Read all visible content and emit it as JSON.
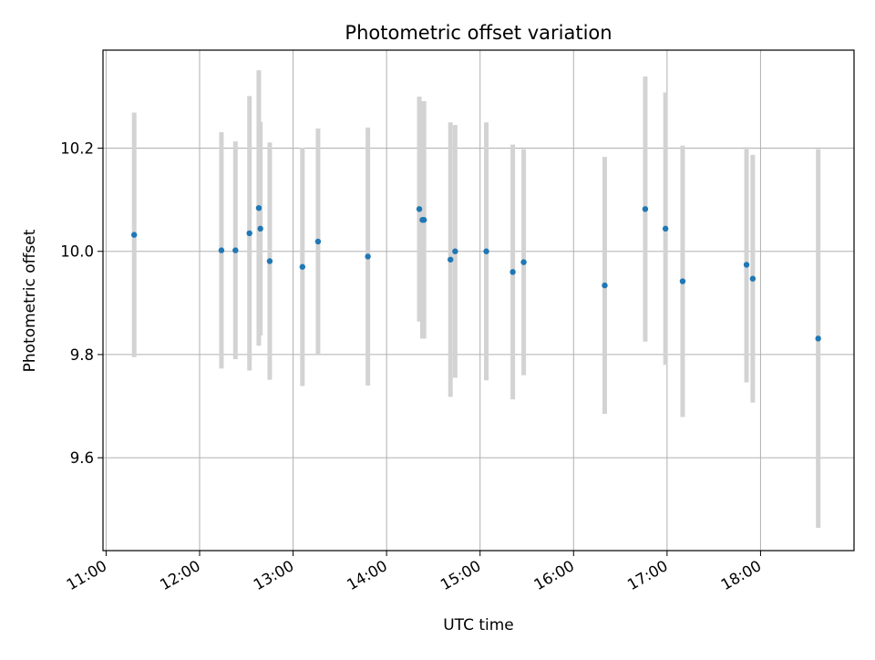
{
  "chart_data": {
    "type": "scatter",
    "title": "Photometric offset variation",
    "xlabel": "UTC time",
    "ylabel": "Photometric offset",
    "x_ticks": [
      "11:00",
      "12:00",
      "13:00",
      "14:00",
      "15:00",
      "16:00",
      "17:00",
      "18:00"
    ],
    "y_ticks": [
      "9.6",
      "9.8",
      "10.0",
      "10.2"
    ],
    "ylim": [
      9.42,
      10.39
    ],
    "xlim": [
      "10:58",
      "19:00"
    ],
    "grid": true,
    "point_color": "#1f77b4",
    "errorbar_color": "#d3d3d3",
    "series": [
      {
        "x": [
          "11:18",
          "12:14",
          "12:23",
          "12:32",
          "12:38",
          "12:39",
          "12:45",
          "13:06",
          "13:16",
          "13:48",
          "14:21",
          "14:23",
          "14:24",
          "14:41",
          "14:44",
          "15:04",
          "15:21",
          "15:28",
          "16:20",
          "16:46",
          "16:59",
          "17:10",
          "17:51",
          "17:55",
          "18:37"
        ],
        "y": [
          10.032,
          10.002,
          10.002,
          10.035,
          10.084,
          10.044,
          9.981,
          9.97,
          10.019,
          9.99,
          10.082,
          10.061,
          10.061,
          9.984,
          10.0,
          10.0,
          9.96,
          9.979,
          9.934,
          10.082,
          10.044,
          9.942,
          9.974,
          9.947,
          9.831
        ],
        "yerr": [
          0.237,
          0.229,
          0.211,
          0.266,
          0.267,
          0.207,
          0.23,
          0.231,
          0.219,
          0.25,
          0.218,
          0.23,
          0.23,
          0.266,
          0.245,
          0.25,
          0.247,
          0.219,
          0.249,
          0.257,
          0.264,
          0.263,
          0.228,
          0.24,
          0.367
        ]
      }
    ]
  }
}
